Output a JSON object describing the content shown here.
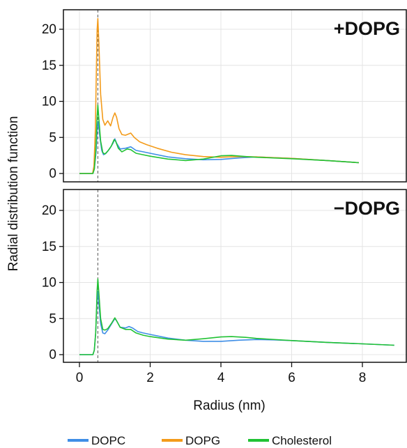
{
  "chart_data": {
    "type": "line",
    "xlabel": "Radius (nm)",
    "ylabel": "Radial distribution function",
    "xlim": [
      -0.45,
      9.4
    ],
    "ylim": [
      -1.2,
      22.5
    ],
    "xticks": [
      0,
      2,
      4,
      6,
      8
    ],
    "yticks": [
      0,
      5,
      10,
      15,
      20
    ],
    "vline_x": 0.52,
    "grid": true,
    "legend": "bottom",
    "panels": [
      {
        "label": "+DOPG",
        "series": [
          {
            "name": "DOPC",
            "color": "#3f8ee6",
            "points": [
              [
                0,
                0
              ],
              [
                0.38,
                0
              ],
              [
                0.42,
                0.6
              ],
              [
                0.47,
                3
              ],
              [
                0.5,
                6.2
              ],
              [
                0.53,
                7.2
              ],
              [
                0.58,
                5
              ],
              [
                0.63,
                3.2
              ],
              [
                0.68,
                2.6
              ],
              [
                0.75,
                2.8
              ],
              [
                0.85,
                3.4
              ],
              [
                0.95,
                4.2
              ],
              [
                1.0,
                4.8
              ],
              [
                1.05,
                4.2
              ],
              [
                1.15,
                3.4
              ],
              [
                1.3,
                3.5
              ],
              [
                1.45,
                3.7
              ],
              [
                1.6,
                3.2
              ],
              [
                1.8,
                3.0
              ],
              [
                2.0,
                2.8
              ],
              [
                2.5,
                2.3
              ],
              [
                3.0,
                2.05
              ],
              [
                3.5,
                1.9
              ],
              [
                4.0,
                1.95
              ],
              [
                4.5,
                2.15
              ],
              [
                5.0,
                2.3
              ],
              [
                6.0,
                2.1
              ],
              [
                7.0,
                1.8
              ],
              [
                7.9,
                1.5
              ]
            ]
          },
          {
            "name": "DOPG",
            "color": "#f39b1a",
            "points": [
              [
                0,
                0
              ],
              [
                0.37,
                0
              ],
              [
                0.41,
                1
              ],
              [
                0.45,
                6
              ],
              [
                0.48,
                15
              ],
              [
                0.5,
                20
              ],
              [
                0.52,
                21.5
              ],
              [
                0.55,
                18
              ],
              [
                0.6,
                11
              ],
              [
                0.66,
                7.5
              ],
              [
                0.72,
                6.7
              ],
              [
                0.8,
                7.3
              ],
              [
                0.88,
                6.6
              ],
              [
                0.95,
                7.8
              ],
              [
                1.0,
                8.4
              ],
              [
                1.05,
                7.8
              ],
              [
                1.12,
                6.2
              ],
              [
                1.2,
                5.4
              ],
              [
                1.3,
                5.3
              ],
              [
                1.45,
                5.6
              ],
              [
                1.55,
                5.0
              ],
              [
                1.7,
                4.4
              ],
              [
                1.9,
                4.0
              ],
              [
                2.2,
                3.5
              ],
              [
                2.6,
                2.95
              ],
              [
                3.0,
                2.6
              ],
              [
                3.5,
                2.35
              ],
              [
                4.0,
                2.25
              ],
              [
                4.5,
                2.35
              ],
              [
                5.0,
                2.3
              ],
              [
                6.0,
                2.1
              ],
              [
                7.0,
                1.8
              ],
              [
                7.9,
                1.5
              ]
            ]
          },
          {
            "name": "Cholesterol",
            "color": "#21c234",
            "points": [
              [
                0,
                0
              ],
              [
                0.38,
                0
              ],
              [
                0.42,
                0.6
              ],
              [
                0.46,
                3
              ],
              [
                0.5,
                8
              ],
              [
                0.52,
                9.5
              ],
              [
                0.55,
                7.5
              ],
              [
                0.6,
                4.5
              ],
              [
                0.66,
                2.9
              ],
              [
                0.72,
                2.7
              ],
              [
                0.8,
                3.1
              ],
              [
                0.9,
                3.8
              ],
              [
                0.98,
                4.7
              ],
              [
                1.02,
                4.5
              ],
              [
                1.1,
                3.5
              ],
              [
                1.2,
                3.0
              ],
              [
                1.35,
                3.4
              ],
              [
                1.45,
                3.3
              ],
              [
                1.6,
                2.8
              ],
              [
                1.8,
                2.6
              ],
              [
                2.0,
                2.4
              ],
              [
                2.5,
                2.0
              ],
              [
                3.0,
                1.8
              ],
              [
                3.5,
                2.0
              ],
              [
                4.0,
                2.45
              ],
              [
                4.3,
                2.5
              ],
              [
                4.7,
                2.35
              ],
              [
                5.0,
                2.25
              ],
              [
                6.0,
                2.05
              ],
              [
                7.0,
                1.8
              ],
              [
                7.9,
                1.5
              ]
            ]
          }
        ]
      },
      {
        "label": "−DOPG",
        "series": [
          {
            "name": "DOPC",
            "color": "#3f8ee6",
            "points": [
              [
                0,
                0
              ],
              [
                0.38,
                0
              ],
              [
                0.42,
                0.6
              ],
              [
                0.46,
                3
              ],
              [
                0.5,
                7.8
              ],
              [
                0.52,
                8.8
              ],
              [
                0.55,
                7
              ],
              [
                0.6,
                4.3
              ],
              [
                0.66,
                3
              ],
              [
                0.72,
                2.9
              ],
              [
                0.8,
                3.4
              ],
              [
                0.9,
                4.2
              ],
              [
                1.0,
                5.0
              ],
              [
                1.05,
                4.7
              ],
              [
                1.15,
                3.8
              ],
              [
                1.3,
                3.7
              ],
              [
                1.4,
                3.9
              ],
              [
                1.5,
                3.7
              ],
              [
                1.65,
                3.2
              ],
              [
                1.8,
                3.0
              ],
              [
                2.0,
                2.8
              ],
              [
                2.5,
                2.3
              ],
              [
                3.0,
                2.0
              ],
              [
                3.5,
                1.85
              ],
              [
                4.0,
                1.85
              ],
              [
                4.5,
                2.0
              ],
              [
                5.0,
                2.1
              ],
              [
                5.5,
                2.05
              ],
              [
                6.0,
                1.95
              ],
              [
                7.0,
                1.7
              ],
              [
                8.0,
                1.5
              ],
              [
                8.9,
                1.3
              ]
            ]
          },
          {
            "name": "Cholesterol",
            "color": "#21c234",
            "points": [
              [
                0,
                0
              ],
              [
                0.38,
                0
              ],
              [
                0.42,
                0.6
              ],
              [
                0.46,
                3
              ],
              [
                0.5,
                9
              ],
              [
                0.52,
                10.5
              ],
              [
                0.55,
                8.5
              ],
              [
                0.6,
                5
              ],
              [
                0.66,
                3.5
              ],
              [
                0.72,
                3.4
              ],
              [
                0.8,
                3.6
              ],
              [
                0.9,
                4.3
              ],
              [
                1.0,
                5.1
              ],
              [
                1.05,
                4.7
              ],
              [
                1.15,
                3.8
              ],
              [
                1.3,
                3.5
              ],
              [
                1.45,
                3.5
              ],
              [
                1.6,
                3.0
              ],
              [
                1.8,
                2.7
              ],
              [
                2.0,
                2.5
              ],
              [
                2.5,
                2.15
              ],
              [
                3.0,
                2.0
              ],
              [
                3.5,
                2.2
              ],
              [
                4.0,
                2.45
              ],
              [
                4.3,
                2.5
              ],
              [
                4.7,
                2.4
              ],
              [
                5.0,
                2.25
              ],
              [
                6.0,
                1.95
              ],
              [
                7.0,
                1.7
              ],
              [
                8.0,
                1.5
              ],
              [
                8.9,
                1.3
              ]
            ]
          }
        ]
      }
    ],
    "legend_entries": [
      {
        "name": "DOPC",
        "color": "#3f8ee6"
      },
      {
        "name": "DOPG",
        "color": "#f39b1a"
      },
      {
        "name": "Cholesterol",
        "color": "#21c234"
      }
    ]
  }
}
